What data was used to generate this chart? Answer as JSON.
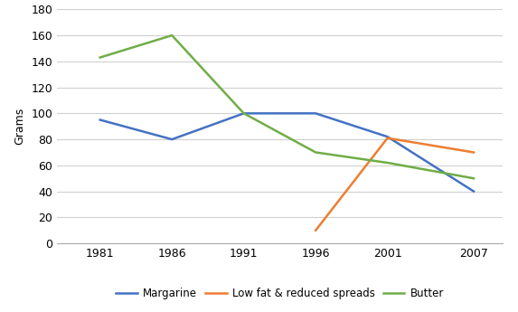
{
  "years": [
    1981,
    1986,
    1991,
    1996,
    2001,
    2007
  ],
  "margarine": [
    95,
    80,
    100,
    100,
    82,
    40
  ],
  "low_fat": [
    null,
    null,
    null,
    10,
    81,
    70
  ],
  "butter": [
    143,
    160,
    100,
    70,
    62,
    50
  ],
  "margarine_color": "#4472C4",
  "low_fat_color": "#ED7D31",
  "butter_color": "#70AD47",
  "ylabel": "Grams",
  "ylim_min": 0,
  "ylim_max": 180,
  "ytick_step": 20,
  "legend_labels": [
    "Margarine",
    "Low fat & reduced spreads",
    "Butter"
  ],
  "background_color": "#FFFFFF",
  "grid_color": "#D0D0D0"
}
